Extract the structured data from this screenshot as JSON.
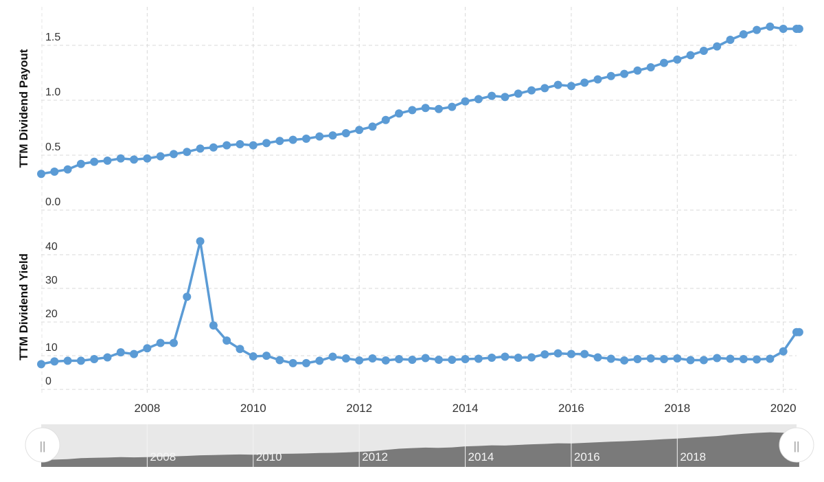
{
  "chart_data": [
    {
      "type": "line",
      "ylabel": "TTM Dividend Payout",
      "ylim": [
        0,
        1.85
      ],
      "yticks": [
        "0.0",
        "0.5",
        "1.0",
        "1.5"
      ],
      "ytick_values": [
        0,
        0.5,
        1.0,
        1.5
      ],
      "grid": true,
      "color": "#5b9bd5",
      "series": [
        {
          "x": [
            2006.0,
            2006.25,
            2006.5,
            2006.75,
            2007.0,
            2007.25,
            2007.5,
            2007.75,
            2008.0,
            2008.25,
            2008.5,
            2008.75,
            2009.0,
            2009.25,
            2009.5,
            2009.75,
            2010.0,
            2010.25,
            2010.5,
            2010.75,
            2011.0,
            2011.25,
            2011.5,
            2011.75,
            2012.0,
            2012.25,
            2012.5,
            2012.75,
            2013.0,
            2013.25,
            2013.5,
            2013.75,
            2014.0,
            2014.25,
            2014.5,
            2014.75,
            2015.0,
            2015.25,
            2015.5,
            2015.75,
            2016.0,
            2016.25,
            2016.5,
            2016.75,
            2017.0,
            2017.25,
            2017.5,
            2017.75,
            2018.0,
            2018.25,
            2018.5,
            2018.75,
            2019.0,
            2019.25,
            2019.5,
            2019.75,
            2020.0,
            2020.25,
            2020.3
          ],
          "values": [
            0.33,
            0.35,
            0.37,
            0.42,
            0.44,
            0.45,
            0.47,
            0.46,
            0.47,
            0.49,
            0.51,
            0.53,
            0.56,
            0.57,
            0.59,
            0.6,
            0.59,
            0.61,
            0.63,
            0.64,
            0.65,
            0.67,
            0.68,
            0.7,
            0.73,
            0.76,
            0.82,
            0.88,
            0.91,
            0.93,
            0.92,
            0.94,
            0.99,
            1.01,
            1.04,
            1.03,
            1.06,
            1.09,
            1.11,
            1.14,
            1.13,
            1.16,
            1.19,
            1.22,
            1.24,
            1.27,
            1.3,
            1.34,
            1.37,
            1.41,
            1.45,
            1.49,
            1.55,
            1.6,
            1.64,
            1.67,
            1.65,
            1.65,
            1.65
          ]
        }
      ]
    },
    {
      "type": "line",
      "ylabel": "TTM Dividend Yield",
      "ylim": [
        -1,
        50
      ],
      "yticks": [
        "0",
        "10",
        "20",
        "30",
        "40"
      ],
      "ytick_values": [
        0,
        10,
        20,
        30,
        40
      ],
      "grid": true,
      "color": "#5b9bd5",
      "xticks": [
        "2008",
        "2010",
        "2012",
        "2014",
        "2016",
        "2018",
        "2020"
      ],
      "xtick_values": [
        2008,
        2010,
        2012,
        2014,
        2016,
        2018,
        2020
      ],
      "series": [
        {
          "x": [
            2006.0,
            2006.25,
            2006.5,
            2006.75,
            2007.0,
            2007.25,
            2007.5,
            2007.75,
            2008.0,
            2008.25,
            2008.5,
            2008.75,
            2009.0,
            2009.25,
            2009.5,
            2009.75,
            2010.0,
            2010.25,
            2010.5,
            2010.75,
            2011.0,
            2011.25,
            2011.5,
            2011.75,
            2012.0,
            2012.25,
            2012.5,
            2012.75,
            2013.0,
            2013.25,
            2013.5,
            2013.75,
            2014.0,
            2014.25,
            2014.5,
            2014.75,
            2015.0,
            2015.25,
            2015.5,
            2015.75,
            2016.0,
            2016.25,
            2016.5,
            2016.75,
            2017.0,
            2017.25,
            2017.5,
            2017.75,
            2018.0,
            2018.25,
            2018.5,
            2018.75,
            2019.0,
            2019.25,
            2019.5,
            2019.75,
            2020.0,
            2020.25,
            2020.3
          ],
          "values": [
            7.5,
            8.3,
            8.5,
            8.5,
            9.0,
            9.5,
            11.0,
            10.5,
            12.2,
            13.8,
            13.8,
            27.5,
            44.0,
            19.0,
            14.5,
            12.0,
            9.8,
            10.0,
            8.7,
            7.8,
            7.8,
            8.5,
            9.7,
            9.2,
            8.6,
            9.2,
            8.6,
            9.0,
            8.8,
            9.3,
            8.8,
            8.8,
            9.0,
            9.1,
            9.4,
            9.7,
            9.4,
            9.5,
            10.4,
            10.7,
            10.5,
            10.5,
            9.5,
            9.1,
            8.6,
            9.0,
            9.2,
            9.0,
            9.2,
            8.7,
            8.7,
            9.3,
            9.1,
            9.0,
            8.9,
            9.1,
            11.3,
            17.0,
            17.0
          ]
        }
      ]
    }
  ],
  "navigator": {
    "labels": [
      "2008",
      "2010",
      "2012",
      "2014",
      "2016",
      "2018"
    ],
    "label_values": [
      2008,
      2010,
      2012,
      2014,
      2016,
      2018
    ],
    "left_handle_glyph": "||",
    "right_handle_glyph": "||"
  }
}
